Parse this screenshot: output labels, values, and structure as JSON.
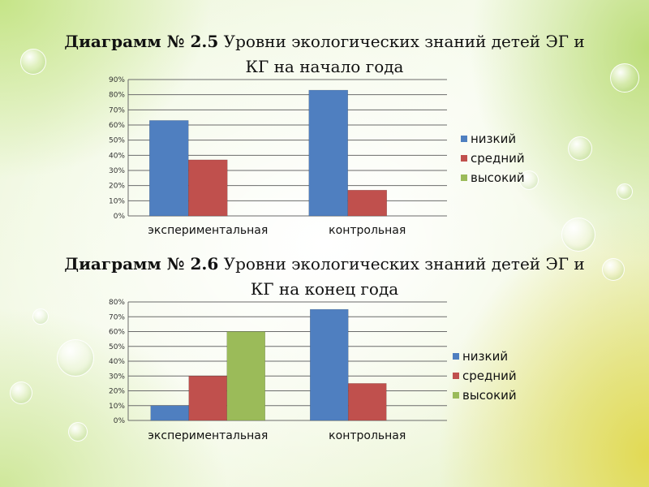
{
  "titles": [
    {
      "number": "Диаграмм № 2.5",
      "line1": "Уровни экологических знаний детей ЭГ и",
      "line2": "КГ на начало года"
    },
    {
      "number": "Диаграмм № 2.6",
      "line1": "Уровни экологических знаний детей ЭГ и",
      "line2": "КГ на конец года"
    }
  ],
  "colors": {
    "низкий": "#4f7fc0",
    "средний": "#c0504d",
    "высокий": "#9bbb59"
  },
  "chart_data": [
    {
      "type": "bar",
      "categories": [
        "экспериментальная",
        "контрольная"
      ],
      "series": [
        {
          "name": "низкий",
          "values": [
            63,
            83
          ]
        },
        {
          "name": "средний",
          "values": [
            37,
            17
          ]
        },
        {
          "name": "высокий",
          "values": [
            0,
            0
          ]
        }
      ],
      "yticks": [
        "0%",
        "10%",
        "20%",
        "30%",
        "40%",
        "50%",
        "60%",
        "70%",
        "80%",
        "90%"
      ],
      "ylim": [
        0,
        90
      ],
      "grid": true,
      "legend": "right"
    },
    {
      "type": "bar",
      "categories": [
        "экспериментальная",
        "контрольная"
      ],
      "series": [
        {
          "name": "низкий",
          "values": [
            10,
            75
          ]
        },
        {
          "name": "средний",
          "values": [
            30,
            25
          ]
        },
        {
          "name": "высокий",
          "values": [
            60,
            0
          ]
        }
      ],
      "yticks": [
        "0%",
        "10%",
        "20%",
        "30%",
        "40%",
        "50%",
        "60%",
        "70%",
        "80%"
      ],
      "ylim": [
        0,
        80
      ],
      "grid": true,
      "legend": "right"
    }
  ]
}
